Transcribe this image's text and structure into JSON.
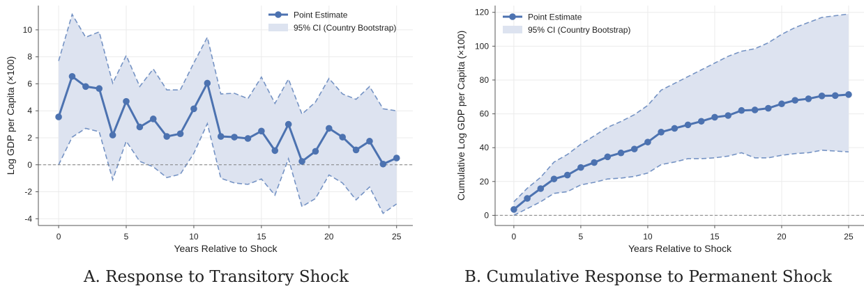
{
  "chart_data": [
    {
      "type": "line",
      "caption": "A. Response to Transitory Shock",
      "xlabel": "Years Relative to Shock",
      "ylabel": "Log GDP per Capita (×100)",
      "xlim": [
        -1.5,
        26.2
      ],
      "ylim": [
        -4.5,
        11.8
      ],
      "xticks": [
        0,
        5,
        10,
        15,
        20,
        25
      ],
      "yticks": [
        -4,
        -2,
        0,
        2,
        4,
        6,
        8,
        10
      ],
      "grid": true,
      "legend_position": "top-right",
      "zero_line": 0,
      "x": [
        0,
        1,
        2,
        3,
        4,
        5,
        6,
        7,
        8,
        9,
        10,
        11,
        12,
        13,
        14,
        15,
        16,
        17,
        18,
        19,
        20,
        21,
        22,
        23,
        24,
        25
      ],
      "series": [
        {
          "name": "Point Estimate",
          "values": [
            3.55,
            6.55,
            5.8,
            5.65,
            2.2,
            4.7,
            2.8,
            3.4,
            2.1,
            2.3,
            4.15,
            6.05,
            2.1,
            2.05,
            1.95,
            2.5,
            1.05,
            3.0,
            0.25,
            1.0,
            2.7,
            2.05,
            1.1,
            1.75,
            0.05,
            0.5
          ]
        },
        {
          "name": "95% CI (Country Bootstrap)",
          "lower": [
            0.0,
            2.05,
            2.7,
            2.45,
            -1.1,
            1.75,
            0.25,
            -0.15,
            -0.95,
            -0.7,
            0.85,
            3.05,
            -1.0,
            -1.35,
            -1.45,
            -1.05,
            -2.25,
            0.45,
            -3.1,
            -2.5,
            -0.75,
            -1.35,
            -2.6,
            -1.65,
            -3.6,
            -2.9
          ],
          "upper": [
            7.7,
            11.15,
            9.45,
            9.85,
            6.05,
            8.1,
            5.8,
            7.1,
            5.55,
            5.55,
            7.55,
            9.45,
            5.25,
            5.3,
            4.9,
            6.5,
            4.55,
            6.35,
            3.75,
            4.65,
            6.4,
            5.25,
            4.85,
            5.8,
            4.15,
            4.0
          ]
        }
      ]
    },
    {
      "type": "line",
      "caption": "B. Cumulative Response to Permanent Shock",
      "xlabel": "Years Relative to Shock",
      "ylabel": "Cumulative Log GDP per Capita (×100)",
      "xlim": [
        -1.4,
        26.2
      ],
      "ylim": [
        -6,
        124
      ],
      "xticks": [
        0,
        5,
        10,
        15,
        20,
        25
      ],
      "yticks": [
        0,
        20,
        40,
        60,
        80,
        100,
        120
      ],
      "grid": true,
      "legend_position": "top-left",
      "zero_line": 0,
      "x": [
        0,
        1,
        2,
        3,
        4,
        5,
        6,
        7,
        8,
        9,
        10,
        11,
        12,
        13,
        14,
        15,
        16,
        17,
        18,
        19,
        20,
        21,
        22,
        23,
        24,
        25
      ],
      "series": [
        {
          "name": "Point Estimate",
          "values": [
            3.5,
            10.0,
            15.8,
            21.5,
            23.8,
            28.3,
            31.2,
            34.6,
            36.9,
            39.2,
            43.3,
            49.2,
            51.4,
            53.5,
            55.6,
            58.0,
            59.0,
            62.0,
            62.3,
            63.3,
            65.9,
            68.0,
            68.9,
            70.6,
            70.8,
            71.4
          ]
        },
        {
          "name": "95% CI (Country Bootstrap)",
          "lower": [
            0.0,
            4.0,
            8.0,
            13.0,
            14.0,
            18.0,
            19.5,
            21.5,
            22.0,
            23.0,
            25.0,
            30.0,
            31.5,
            33.5,
            33.5,
            34.0,
            35.0,
            37.0,
            34.0,
            34.0,
            35.5,
            36.5,
            37.0,
            38.5,
            38.0,
            37.5
          ],
          "upper": [
            8.0,
            16.0,
            22.5,
            31.5,
            36.0,
            42.0,
            47.0,
            52.0,
            55.5,
            59.5,
            65.0,
            74.0,
            78.0,
            82.0,
            86.0,
            90.0,
            94.0,
            97.0,
            98.5,
            102.0,
            107.0,
            111.0,
            114.0,
            117.0,
            118.0,
            119.0
          ]
        }
      ]
    }
  ],
  "colors": {
    "line": "#4c72b0",
    "band": "#dde3f0",
    "ci_edge": "#7593c4",
    "grid": "#ebebeb",
    "zero": "#7f7f7f"
  }
}
